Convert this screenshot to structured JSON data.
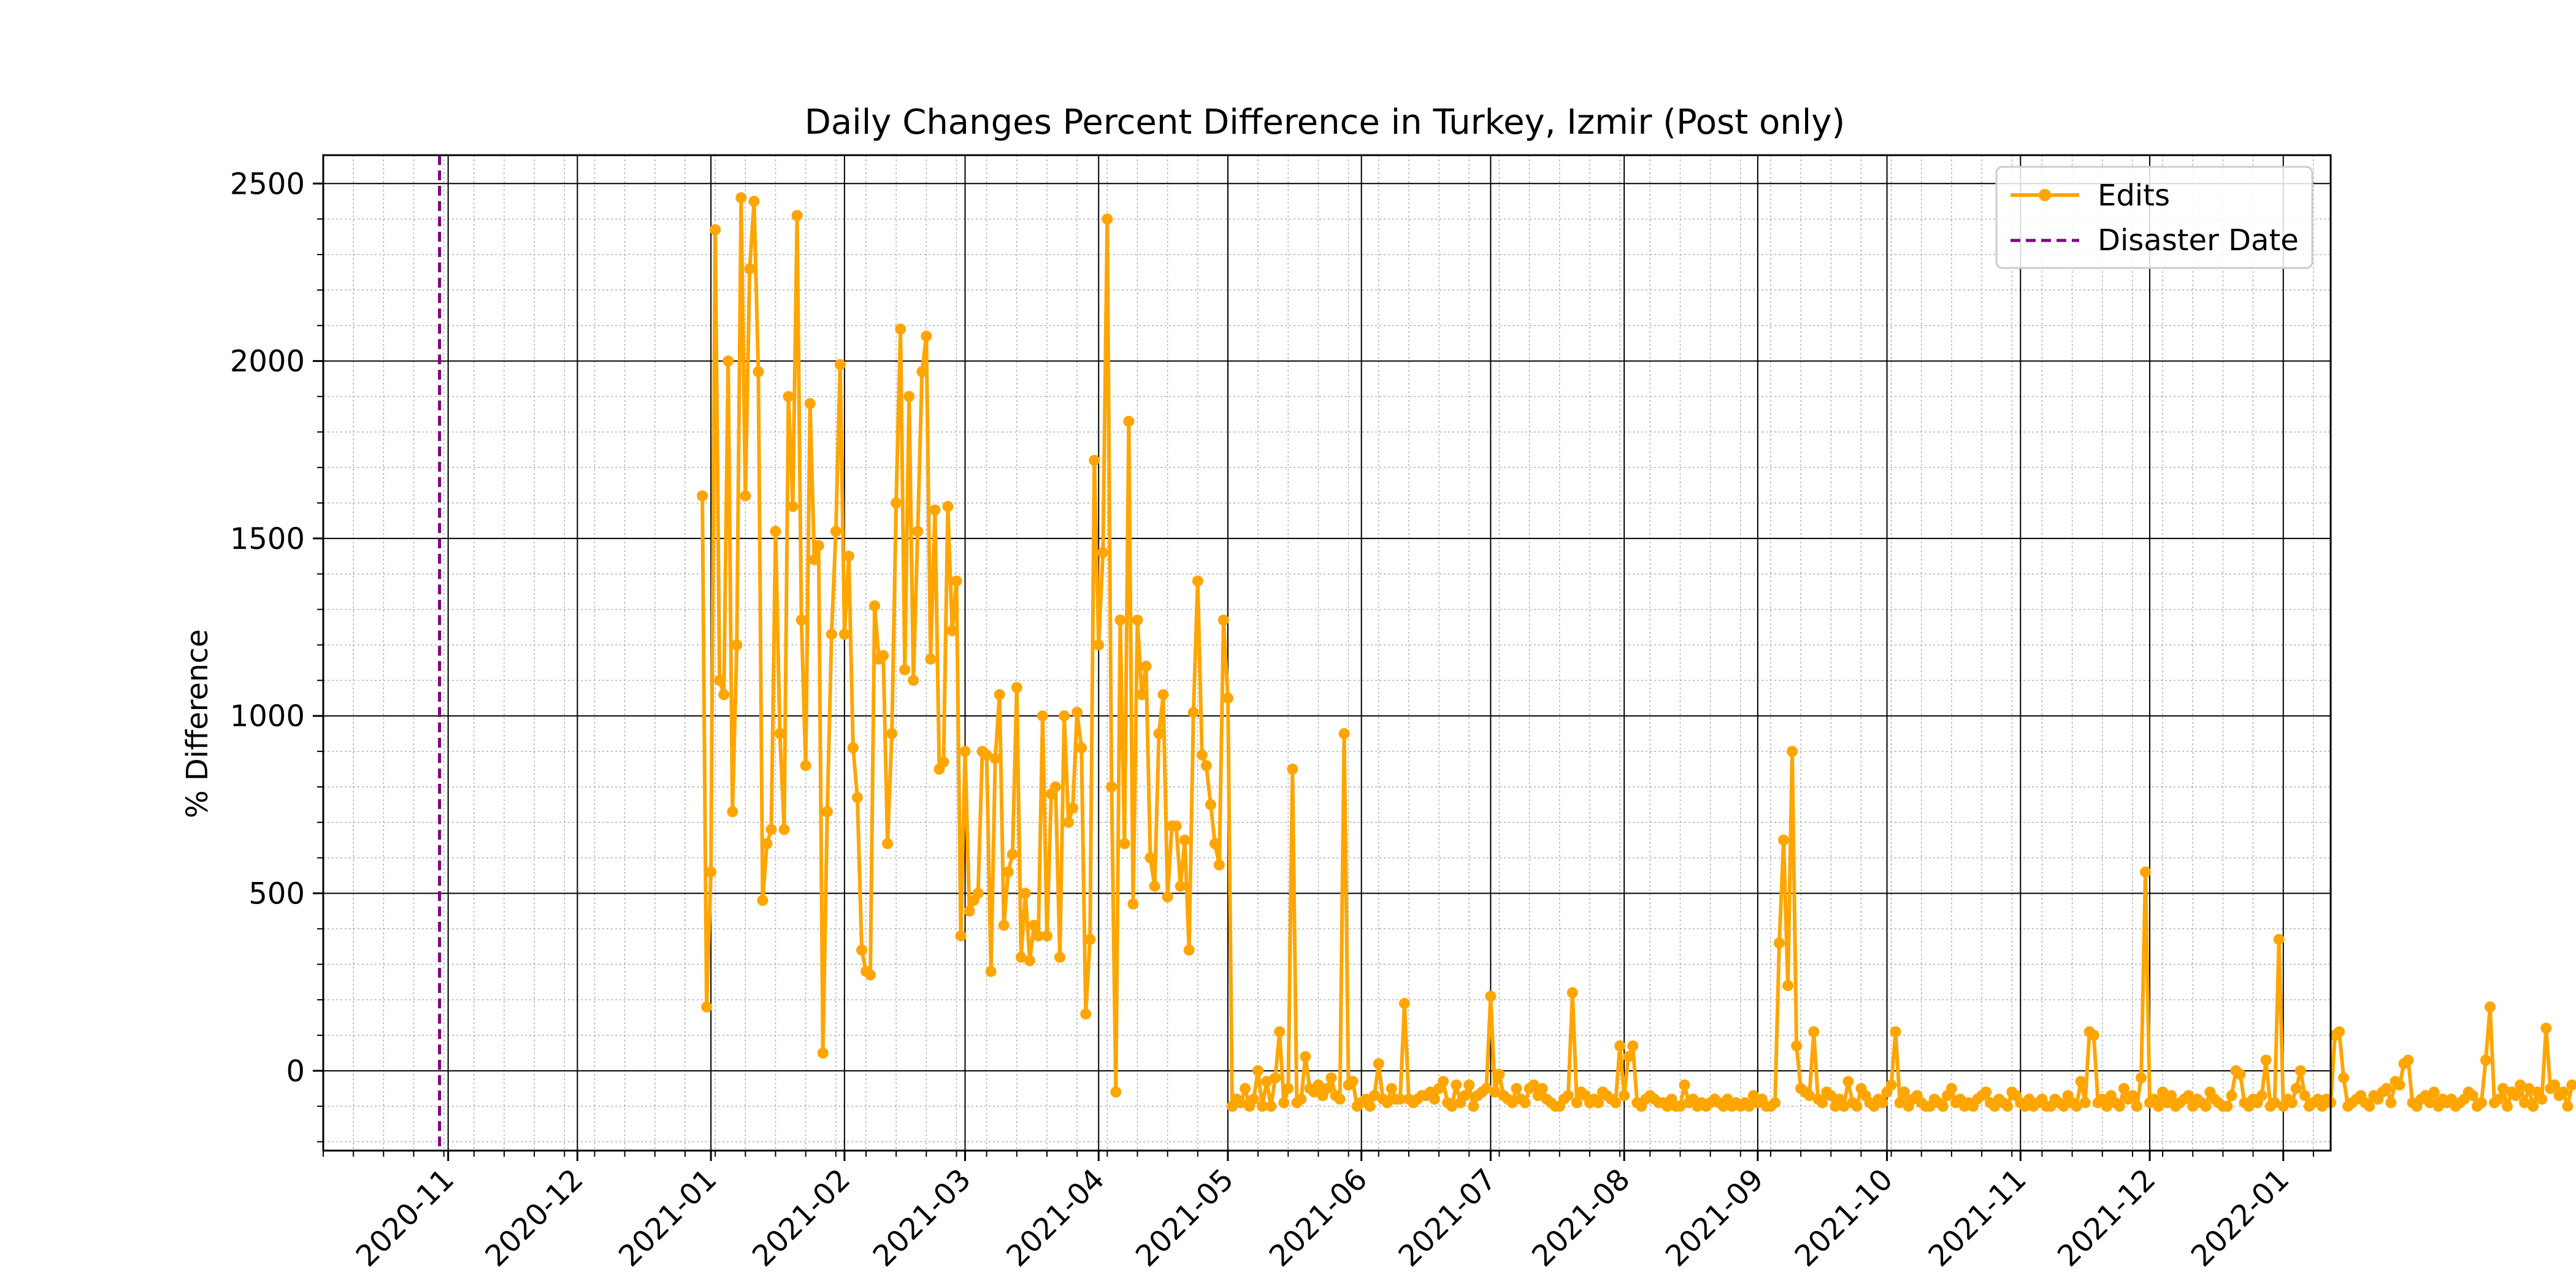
{
  "chart_data": {
    "type": "line",
    "title": "Daily Changes Percent Difference in Turkey, Izmir (Post only)",
    "xlabel": "",
    "ylabel": "% Difference",
    "xlim": [
      "2020-10-03",
      "2022-01-12"
    ],
    "ylim": [
      -225,
      2580
    ],
    "x_ticks": [
      "2020-11",
      "2020-12",
      "2021-01",
      "2021-02",
      "2021-03",
      "2021-04",
      "2021-05",
      "2021-06",
      "2021-07",
      "2021-08",
      "2021-09",
      "2021-10",
      "2021-11",
      "2021-12",
      "2022-01"
    ],
    "y_ticks": [
      0,
      500,
      1000,
      1500,
      2000,
      2500
    ],
    "grid": "major and minor",
    "legend": "top-right",
    "disaster_date": "2020-10-30",
    "series": [
      {
        "name": "Edits",
        "color": "#ffa500",
        "marker": "circle",
        "start_date": "2020-12-30",
        "values": [
          1620,
          180,
          560,
          2370,
          1100,
          1060,
          2000,
          730,
          1200,
          2460,
          1620,
          2260,
          2450,
          1970,
          480,
          640,
          680,
          1520,
          950,
          680,
          1900,
          1590,
          2410,
          1270,
          860,
          1880,
          1440,
          1480,
          50,
          730,
          1230,
          1520,
          1990,
          1230,
          1450,
          910,
          770,
          340,
          280,
          270,
          1310,
          1160,
          1170,
          640,
          950,
          1600,
          2090,
          1130,
          1900,
          1100,
          1520,
          1970,
          2070,
          1160,
          1580,
          850,
          870,
          1590,
          1240,
          1380,
          380,
          900,
          450,
          480,
          500,
          900,
          890,
          280,
          880,
          1060,
          410,
          560,
          610,
          1080,
          320,
          500,
          310,
          410,
          380,
          1000,
          380,
          780,
          800,
          320,
          1000,
          700,
          740,
          1010,
          910,
          160,
          370,
          1720,
          1200,
          1460,
          2400,
          800,
          -60,
          1270,
          640,
          1830,
          470,
          1270,
          1060,
          1140,
          600,
          520,
          950,
          1060,
          490,
          690,
          690,
          520,
          650,
          340,
          1010,
          1380,
          890,
          860,
          750,
          640,
          580,
          1270,
          1050,
          -100,
          -80,
          -90,
          -50,
          -100,
          -80,
          0,
          -100,
          -30,
          -100,
          -20,
          110,
          -90,
          -50,
          850,
          -90,
          -80,
          40,
          -50,
          -60,
          -40,
          -70,
          -50,
          -20,
          -70,
          -80,
          950,
          -40,
          -30,
          -100,
          -90,
          -80,
          -100,
          -70,
          20,
          -80,
          -90,
          -50,
          -80,
          -80,
          190,
          -80,
          -90,
          -80,
          -70,
          -70,
          -60,
          -80,
          -50,
          -30,
          -90,
          -100,
          -40,
          -90,
          -70,
          -40,
          -100,
          -70,
          -60,
          -50,
          210,
          -60,
          -10,
          -70,
          -80,
          -90,
          -50,
          -80,
          -90,
          -50,
          -40,
          -70,
          -50,
          -80,
          -90,
          -100,
          -100,
          -80,
          -70,
          220,
          -90,
          -60,
          -70,
          -90,
          -80,
          -90,
          -60,
          -70,
          -80,
          -90,
          70,
          -70,
          40,
          70,
          -90,
          -100,
          -80,
          -70,
          -80,
          -90,
          -90,
          -100,
          -80,
          -100,
          -100,
          -40,
          -90,
          -80,
          -100,
          -90,
          -100,
          -90,
          -80,
          -90,
          -100,
          -80,
          -100,
          -90,
          -100,
          -90,
          -100,
          -70,
          -90,
          -80,
          -100,
          -100,
          -90,
          360,
          650,
          240,
          900,
          70,
          -50,
          -60,
          -70,
          110,
          -80,
          -90,
          -60,
          -70,
          -100,
          -80,
          -100,
          -30,
          -90,
          -100,
          -50,
          -70,
          -90,
          -100,
          -80,
          -90,
          -60,
          -40,
          110,
          -90,
          -60,
          -100,
          -80,
          -70,
          -90,
          -100,
          -100,
          -80,
          -90,
          -100,
          -70,
          -50,
          -90,
          -80,
          -100,
          -90,
          -100,
          -80,
          -70,
          -60,
          -90,
          -100,
          -80,
          -90,
          -100,
          -60,
          -70,
          -90,
          -100,
          -80,
          -100,
          -90,
          -80,
          -100,
          -100,
          -80,
          -90,
          -100,
          -70,
          -90,
          -100,
          -30,
          -90,
          110,
          100,
          -90,
          -80,
          -100,
          -70,
          -90,
          -100,
          -50,
          -80,
          -70,
          -100,
          -20,
          560,
          -90,
          -80,
          -100,
          -60,
          -90,
          -70,
          -100,
          -90,
          -80,
          -70,
          -100,
          -80,
          -90,
          -100,
          -60,
          -80,
          -90,
          -100,
          -100,
          -70,
          0,
          -10,
          -90,
          -100,
          -80,
          -90,
          -70,
          30,
          -100,
          -90,
          370,
          -100,
          -80,
          -90,
          -50,
          0,
          -70,
          -100,
          -90,
          -80,
          -100,
          -80,
          -90,
          100,
          110,
          -20,
          -100,
          -90,
          -80,
          -70,
          -90,
          -100,
          -70,
          -80,
          -60,
          -50,
          -90,
          -30,
          -40,
          20,
          30,
          -90,
          -100,
          -80,
          -70,
          -90,
          -60,
          -100,
          -80,
          -90,
          -80,
          -100,
          -90,
          -80,
          -60,
          -70,
          -100,
          -90,
          30,
          180,
          -90,
          -80,
          -50,
          -100,
          -60,
          -70,
          -40,
          -90,
          -50,
          -100,
          -60,
          -80,
          120,
          -50,
          -40,
          -70,
          -60,
          -100,
          -40
        ]
      },
      {
        "name": "Disaster Date",
        "color": "#800080",
        "style": "dashed"
      }
    ]
  }
}
